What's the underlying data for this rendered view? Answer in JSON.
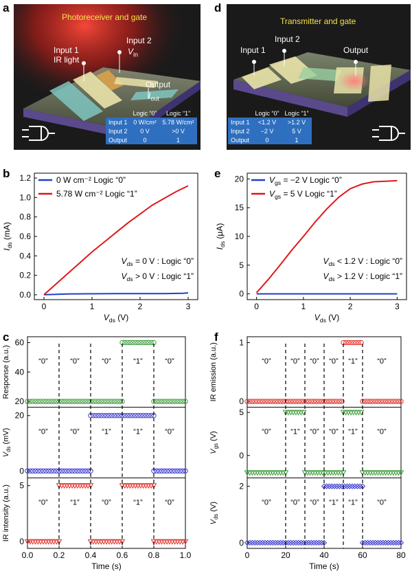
{
  "panels": {
    "a": {
      "letter": "a",
      "title": "Photoreceiver and gate",
      "labels": {
        "input1": "Input 1",
        "ir_light": "IR light",
        "input2": "Input 2",
        "vin": "V",
        "vin_sub": "in",
        "output": "Output",
        "iout": "I",
        "iout_sub": "out"
      },
      "table": {
        "headers": [
          "",
          "Logic “0”",
          "Logic “1”"
        ],
        "rows": [
          [
            "Input 1",
            "0 W/cm²",
            "5.78 W/cm²"
          ],
          [
            "Input 2",
            "0 V",
            ">0 V"
          ],
          [
            "Output",
            "0",
            "1"
          ]
        ]
      }
    },
    "d": {
      "letter": "d",
      "title": "Transmitter and gate",
      "labels": {
        "input1": "Input 1",
        "input2": "Input 2",
        "output": "Output"
      },
      "table": {
        "headers": [
          "",
          "Logic “0”",
          "Logic “1”"
        ],
        "rows": [
          [
            "Input 1",
            "<1.2 V",
            ">1.2 V"
          ],
          [
            "Input 2",
            "−2 V",
            "5 V"
          ],
          [
            "Output",
            "0",
            "1"
          ]
        ]
      }
    },
    "b": {
      "letter": "b"
    },
    "e": {
      "letter": "e"
    },
    "c": {
      "letter": "c"
    },
    "f": {
      "letter": "f"
    }
  },
  "colors": {
    "blue": "#1f3fc4",
    "red": "#e0161b",
    "green": "#3a9a3a",
    "red_marker": "#e0302a",
    "blue_marker": "#3a3ad0",
    "table_blue": "#2f6fbf",
    "title_yellow": "#f4e34a"
  },
  "chart_data": [
    {
      "id": "b",
      "type": "line",
      "xlabel": "V_ds (V)",
      "ylabel": "I_ds (mA)",
      "xlim": [
        -0.2,
        3.2
      ],
      "ylim": [
        -0.05,
        1.25
      ],
      "xticks": [
        0,
        1,
        2,
        3
      ],
      "yticks": [
        0.0,
        0.2,
        0.4,
        0.6,
        0.8,
        1.0,
        1.2
      ],
      "yticklabels": [
        "0.0",
        "0.2",
        "0.4",
        "0.6",
        "0.8",
        "1.0",
        "1.2"
      ],
      "annotations": [
        "V_ds = 0 V : Logic “0”",
        "V_ds > 0 V : Logic “1”"
      ],
      "legend": "top-left",
      "series": [
        {
          "name": "0 W cm⁻² Logic “0”",
          "color": "#1f3fc4",
          "x": [
            0,
            0.5,
            1,
            1.5,
            2,
            2.5,
            2.9,
            3.0
          ],
          "y": [
            0,
            0.008,
            0.01,
            0.012,
            0.012,
            0.012,
            0.015,
            0.02
          ]
        },
        {
          "name": "5.78 W cm⁻² Logic “1”",
          "color": "#e0161b",
          "x": [
            0,
            0.25,
            0.5,
            0.75,
            1.0,
            1.25,
            1.5,
            1.75,
            2.0,
            2.25,
            2.5,
            2.75,
            3.0
          ],
          "y": [
            0,
            0.11,
            0.22,
            0.33,
            0.44,
            0.54,
            0.64,
            0.74,
            0.83,
            0.92,
            0.99,
            1.06,
            1.12
          ]
        }
      ]
    },
    {
      "id": "e",
      "type": "line",
      "xlabel": "V_ds (V)",
      "ylabel": "I_ds (μA)",
      "xlim": [
        -0.2,
        3.2
      ],
      "ylim": [
        -1,
        21
      ],
      "xticks": [
        0,
        1,
        2,
        3
      ],
      "yticks": [
        0,
        5,
        10,
        15,
        20
      ],
      "annotations": [
        "V_ds < 1.2 V : Logic “0”",
        "V_ds > 1.2 V : Logic “1”"
      ],
      "legend": "top-left",
      "series": [
        {
          "name": "V_gs = −2 V Logic “0”",
          "color": "#1f3fc4",
          "x": [
            0,
            1,
            2,
            3
          ],
          "y": [
            0,
            0,
            0,
            0
          ]
        },
        {
          "name": "V_gs = 5 V Logic “1”",
          "color": "#e0161b",
          "x": [
            0,
            0.25,
            0.5,
            0.75,
            1.0,
            1.25,
            1.5,
            1.75,
            2.0,
            2.25,
            2.5,
            2.75,
            3.0
          ],
          "y": [
            0.2,
            2.5,
            5.0,
            7.6,
            10.0,
            12.5,
            14.8,
            16.8,
            18.3,
            19.1,
            19.5,
            19.6,
            19.7
          ]
        }
      ]
    },
    {
      "id": "c",
      "type": "scatter",
      "xlabel": "Time (s)",
      "xlim": [
        0,
        1.0
      ],
      "xticks": [
        0.0,
        0.2,
        0.4,
        0.6,
        0.8,
        1.0
      ],
      "xticklabels": [
        "0.0",
        "0.2",
        "0.4",
        "0.6",
        "0.8",
        "1.0"
      ],
      "dividers": [
        0.2,
        0.4,
        0.6,
        0.8
      ],
      "subplots": [
        {
          "ylabel": "Response (a.u.)",
          "yticks": [
            20,
            40,
            60
          ],
          "ylim": [
            16,
            64
          ],
          "color": "#3a9a3a",
          "marker": "circle",
          "segments": [
            [
              0,
              0.6,
              20
            ],
            [
              0.6,
              0.8,
              60
            ],
            [
              0.8,
              1.0,
              20
            ]
          ],
          "logic": [
            "“0”",
            "“0”",
            "“0”",
            "“1”",
            "“0”"
          ]
        },
        {
          "ylabel": "V_ds (mV)",
          "yticks": [
            0,
            20
          ],
          "ylim": [
            -2.5,
            23
          ],
          "color": "#3a3ad0",
          "marker": "circle",
          "segments": [
            [
              0,
              0.4,
              0
            ],
            [
              0.4,
              0.8,
              20
            ],
            [
              0.8,
              1.0,
              0
            ]
          ],
          "logic": [
            "“0”",
            "“0”",
            "“1”",
            "“1”",
            "“0”"
          ]
        },
        {
          "ylabel": "IR intensity (a.u.)",
          "yticks": [
            0,
            5
          ],
          "ylim": [
            -0.6,
            5.7
          ],
          "color": "#e0302a",
          "marker": "triangle",
          "segments": [
            [
              0,
              0.2,
              0
            ],
            [
              0.2,
              0.4,
              5
            ],
            [
              0.4,
              0.6,
              0
            ],
            [
              0.6,
              0.8,
              5
            ],
            [
              0.8,
              1.0,
              0
            ]
          ],
          "logic": [
            "“0”",
            "“1”",
            "“0”",
            "“1”",
            "“0”"
          ]
        }
      ]
    },
    {
      "id": "f",
      "type": "scatter",
      "xlabel": "Time (s)",
      "xlim": [
        0,
        80
      ],
      "xticks": [
        0,
        20,
        40,
        60,
        80
      ],
      "dividers": [
        20,
        30,
        40,
        50,
        60
      ],
      "subplots": [
        {
          "ylabel": "IR emission (a.u.)",
          "yticks": [
            0,
            1
          ],
          "ylim": [
            -0.1,
            1.1
          ],
          "color": "#e0302a",
          "marker": "circle",
          "segments": [
            [
              0,
              50,
              0
            ],
            [
              50,
              60,
              1
            ],
            [
              60,
              80,
              0
            ]
          ],
          "logic": [
            "“0”",
            "“0”",
            "“0”",
            "“0”",
            "“1”",
            "“0”"
          ]
        },
        {
          "ylabel": "V_gs (V)",
          "yticks": [
            0,
            5
          ],
          "ylim": [
            -2.6,
            5.6
          ],
          "color": "#3a9a3a",
          "marker": "triangle",
          "segments": [
            [
              0,
              20,
              -2
            ],
            [
              20,
              30,
              5
            ],
            [
              30,
              50,
              -2
            ],
            [
              50,
              60,
              5
            ],
            [
              60,
              80,
              -2
            ]
          ],
          "logic": [
            "“0”",
            "“1”",
            "“0”",
            "“0”",
            "“1”",
            "“0”"
          ]
        },
        {
          "ylabel": "V_ds (V)",
          "yticks": [
            0,
            2
          ],
          "ylim": [
            -0.2,
            2.3
          ],
          "color": "#3a3ad0",
          "marker": "diamond",
          "segments": [
            [
              0,
              40,
              0
            ],
            [
              40,
              60,
              2
            ],
            [
              60,
              80,
              0
            ]
          ],
          "logic": [
            "“0”",
            "“0”",
            "“0”",
            "“1”",
            "“1”",
            "“0”"
          ]
        }
      ]
    }
  ]
}
